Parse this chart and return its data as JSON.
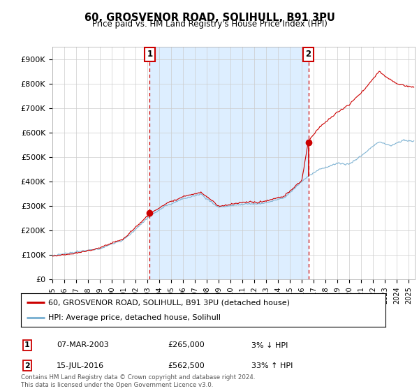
{
  "title": "60, GROSVENOR ROAD, SOLIHULL, B91 3PU",
  "subtitle": "Price paid vs. HM Land Registry's House Price Index (HPI)",
  "ylabel_ticks": [
    "£0",
    "£100K",
    "£200K",
    "£300K",
    "£400K",
    "£500K",
    "£600K",
    "£700K",
    "£800K",
    "£900K"
  ],
  "ytick_values": [
    0,
    100000,
    200000,
    300000,
    400000,
    500000,
    600000,
    700000,
    800000,
    900000
  ],
  "ylim": [
    0,
    950000
  ],
  "sale1_x": 2003.19,
  "sale1_price": 265000,
  "sale2_x": 2016.54,
  "sale2_price": 562500,
  "legend_line1": "60, GROSVENOR ROAD, SOLIHULL, B91 3PU (detached house)",
  "legend_line2": "HPI: Average price, detached house, Solihull",
  "table_row1": [
    "1",
    "07-MAR-2003",
    "£265,000",
    "3% ↓ HPI"
  ],
  "table_row2": [
    "2",
    "15-JUL-2016",
    "£562,500",
    "33% ↑ HPI"
  ],
  "footer": "Contains HM Land Registry data © Crown copyright and database right 2024.\nThis data is licensed under the Open Government Licence v3.0.",
  "line_color_red": "#cc0000",
  "line_color_blue": "#7fb3d3",
  "shade_color": "#ddeeff",
  "background_color": "#ffffff",
  "grid_color": "#cccccc",
  "xlim_start": 1995.0,
  "xlim_end": 2025.5
}
